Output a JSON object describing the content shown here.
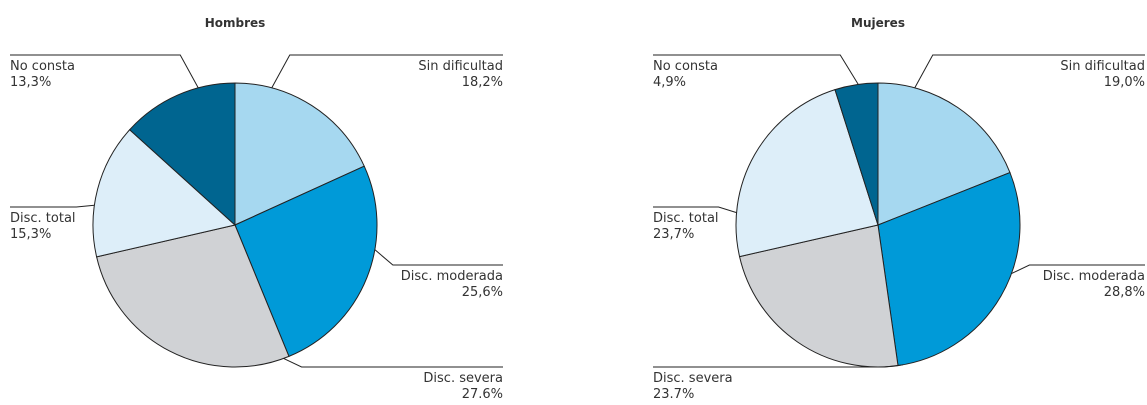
{
  "chart_data": [
    {
      "type": "pie",
      "title": "Hombres",
      "categories": [
        "Sin dificultad",
        "Disc. moderada",
        "Disc. severa",
        "Disc. total",
        "No consta"
      ],
      "values": [
        18.2,
        25.6,
        27.6,
        15.3,
        13.3
      ],
      "value_labels": [
        "18,2%",
        "25,6%",
        "27.6%",
        "15,3%",
        "13,3%"
      ],
      "colors": [
        "#a6d8f0",
        "#009ad8",
        "#d0d2d5",
        "#ddeef9",
        "#006590"
      ]
    },
    {
      "type": "pie",
      "title": "Mujeres",
      "categories": [
        "Sin dificultad",
        "Disc. moderada",
        "Disc. severa",
        "Disc. total",
        "No consta"
      ],
      "values": [
        19.0,
        28.8,
        23.7,
        23.7,
        4.9
      ],
      "value_labels": [
        "19,0%",
        "28,8%",
        "23.7%",
        "23,7%",
        "4,9%"
      ],
      "colors": [
        "#a6d8f0",
        "#009ad8",
        "#d0d2d5",
        "#ddeef9",
        "#006590"
      ]
    }
  ]
}
